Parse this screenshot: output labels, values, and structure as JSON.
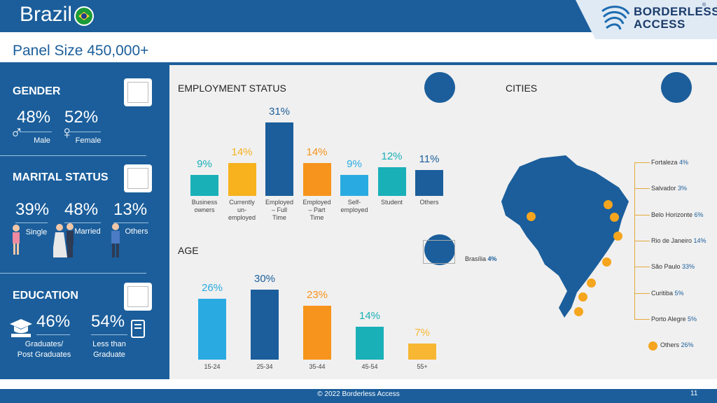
{
  "header": {
    "country": "Brazil",
    "logo_line1": "BORDERLESS",
    "logo_line2": "ACCESS",
    "logo_reg": "®"
  },
  "panel_size": "Panel Size 450,000+",
  "gender": {
    "title": "GENDER",
    "male_pct": "48%",
    "female_pct": "52%",
    "male_label": "Male",
    "female_label": "Female",
    "male_symbol": "♂",
    "female_symbol": "♀"
  },
  "marital": {
    "title": "MARITAL STATUS",
    "single_pct": "39%",
    "married_pct": "48%",
    "others_pct": "13%",
    "single_label": "Single",
    "married_label": "Married",
    "others_label": "Others"
  },
  "education": {
    "title": "EDUCATION",
    "grad_pct": "46%",
    "less_pct": "54%",
    "grad_label_1": "Graduates/",
    "grad_label_2": "Post Graduates",
    "less_label_1": "Less than",
    "less_label_2": "Graduate"
  },
  "employment": {
    "title": "EMPLOYMENT STATUS"
  },
  "age": {
    "title": "AGE"
  },
  "cities": {
    "title": "CITIES",
    "brasilia": {
      "name": "Brasília",
      "value": "4%"
    },
    "list": [
      {
        "name": "Fortaleza",
        "value": "4%"
      },
      {
        "name": "Salvador",
        "value": "3%"
      },
      {
        "name": "Belo Horizonte",
        "value": "6%"
      },
      {
        "name": "Rio de Janeiro",
        "value": "14%"
      },
      {
        "name": "São Paulo",
        "value": "33%"
      },
      {
        "name": "Curitiba",
        "value": "5%"
      },
      {
        "name": "Porto Alegre",
        "value": "5%"
      }
    ],
    "others": {
      "name": "Others",
      "value": "26%"
    }
  },
  "footer": {
    "copyright": "© 2022 Borderless Access",
    "page": "11"
  },
  "colors": {
    "dark_blue": "#1b5e9b",
    "teal": "#1ab0b8",
    "orange": "#f7941d",
    "light_blue": "#29abe2",
    "yellow": "#f7b733"
  },
  "chart_data": [
    {
      "type": "bar",
      "title": "EMPLOYMENT STATUS",
      "categories": [
        "Business owners",
        "Currently un-employed",
        "Employed – Full Time",
        "Employed – Part Time",
        "Self-employed",
        "Student",
        "Others"
      ],
      "values": [
        9,
        14,
        31,
        14,
        9,
        12,
        11
      ],
      "labels": [
        "9%",
        "14%",
        "31%",
        "14%",
        "9%",
        "12%",
        "11%"
      ],
      "category_lines": [
        [
          "Business",
          "owners"
        ],
        [
          "Currently",
          "un-",
          "employed"
        ],
        [
          "Employed",
          "– Full",
          "Time"
        ],
        [
          "Employed",
          "– Part",
          "Time"
        ],
        [
          "Self-",
          "employed"
        ],
        [
          "Student"
        ],
        [
          "Others"
        ]
      ],
      "colors": [
        "#1ab0b8",
        "#f7b21e",
        "#1b5e9b",
        "#f7941d",
        "#29abe2",
        "#1ab0b8",
        "#1b5e9b"
      ]
    },
    {
      "type": "bar",
      "title": "AGE",
      "categories": [
        "15-24",
        "25-34",
        "35-44",
        "45-54",
        "55+"
      ],
      "values": [
        26,
        30,
        23,
        14,
        7
      ],
      "labels": [
        "26%",
        "30%",
        "23%",
        "14%",
        "7%"
      ],
      "colors": [
        "#29abe2",
        "#1b5e9b",
        "#f7941d",
        "#1ab0b8",
        "#f7b733"
      ]
    }
  ]
}
